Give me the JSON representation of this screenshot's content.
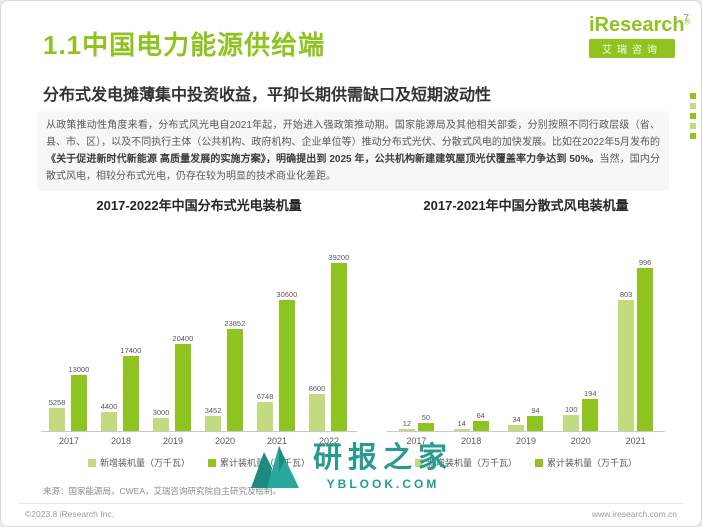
{
  "page": {
    "number": "7",
    "footer_left": "©2023.8 iResearch Inc.",
    "footer_right": "www.iresearch.com.cn",
    "source_note": "来源：国家能源局，CWEA，艾瑞咨询研究院自主研究及绘制。"
  },
  "brand": {
    "logo_text": "iResearch",
    "logo_reg": "®",
    "logo_subtext": "艾瑞咨询",
    "accent_green": "#8fc31f",
    "light_green": "#c3db7f"
  },
  "header": {
    "title": "1.1中国电力能源供给端",
    "subtitle": "分布式发电摊薄集中投资收益，平抑长期供需缺口及短期波动性"
  },
  "body": {
    "paragraph_parts": [
      "从政策推动性角度来看，分布式风光电自2021年起，开始进入强政策推动期。国家能源局及其他相关部委，分别按照不同行政层级（省、县、市、区），以及不同执行主体（公共机构、政府机构、企业单位等）推动分布式光伏、分散式风电的加快发展。比如在2022年5月发布的",
      "《关于促进新时代新能源 高质量发展的实施方案》，明确提出到 2025 年，公共机构新建建筑屋顶光伏覆盖率力争达到 50%。",
      "当然，国内分散式风电，相较分布式光电，仍存在较为明显的技术商业化差距。"
    ]
  },
  "watermark": {
    "title": "研报之家",
    "subtitle": "YBLOOK.COM",
    "color": "#279b90"
  },
  "chart_data": [
    {
      "type": "bar",
      "title": "2017-2022年中国分布式光电装机量",
      "categories": [
        "2017",
        "2018",
        "2019",
        "2020",
        "2021",
        "2022"
      ],
      "series": [
        {
          "name": "新增装机量（万千瓦）",
          "color": "#c3db7f",
          "values": [
            5258,
            4400,
            3000,
            3452,
            6748,
            8600
          ]
        },
        {
          "name": "累计装机量（万千瓦）",
          "color": "#8fc31f",
          "values": [
            13000,
            17400,
            20400,
            23852,
            30600,
            39200
          ]
        }
      ],
      "unit": "万千瓦",
      "ylim": [
        0,
        42000
      ],
      "grid": false,
      "value_labels": true,
      "legend_position": "bottom"
    },
    {
      "type": "bar",
      "title": "2017-2021年中国分散式风电装机量",
      "categories": [
        "2017",
        "2018",
        "2019",
        "2020",
        "2021"
      ],
      "series": [
        {
          "name": "新增装机量（万千瓦）",
          "color": "#c3db7f",
          "values": [
            12,
            14,
            34,
            100,
            803
          ]
        },
        {
          "name": "累计装机量（万千瓦）",
          "color": "#8fc31f",
          "values": [
            50,
            64,
            94,
            194,
            996
          ]
        }
      ],
      "unit": "万千瓦",
      "ylim": [
        0,
        1100
      ],
      "grid": false,
      "value_labels": true,
      "legend_position": "bottom"
    }
  ]
}
